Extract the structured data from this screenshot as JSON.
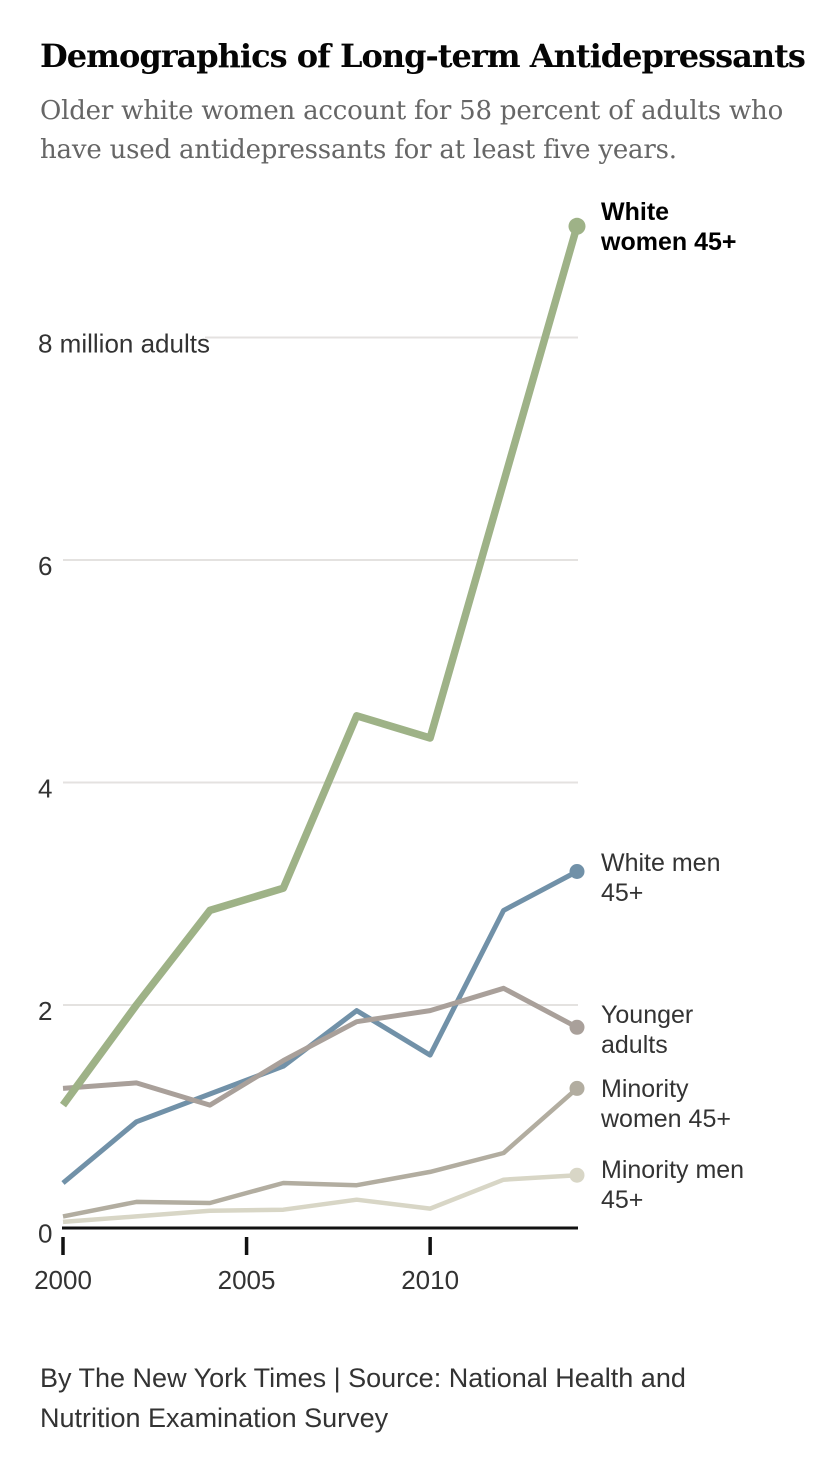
{
  "chart_data": {
    "type": "line",
    "title": "Demographics of Long-term Antidepressants",
    "subtitle": "Older white women account for 58 percent of adults who have used antidepressants for at least five years.",
    "unit": "million adults",
    "x": [
      2000,
      2002,
      2004,
      2006,
      2008,
      2010,
      2012,
      2014
    ],
    "x_ticks": [
      2000,
      2005,
      2010
    ],
    "y_ticks": [
      {
        "value": 0,
        "label": "0"
      },
      {
        "value": 2,
        "label": "2"
      },
      {
        "value": 4,
        "label": "4"
      },
      {
        "value": 6,
        "label": "6"
      },
      {
        "value": 8,
        "label": "8 million adults"
      }
    ],
    "ylim": [
      0,
      9.4
    ],
    "grid": true,
    "grid_color": "#e4e2e0",
    "axis_color": "#111111",
    "tick_label_color": "#333333",
    "legend_position": "right-of-line-ends",
    "series": [
      {
        "id": "white-women-45",
        "name": "White women 45+",
        "label_lines": [
          "White",
          "women 45+"
        ],
        "color": "#9eb287",
        "line_width": 7.5,
        "bold_label": true,
        "values": [
          1.1,
          2.0,
          2.85,
          3.05,
          4.6,
          4.4,
          6.7,
          9.0
        ]
      },
      {
        "id": "white-men-45",
        "name": "White men 45+",
        "label_lines": [
          "White men",
          "45+"
        ],
        "color": "#7191a8",
        "line_width": 5,
        "bold_label": false,
        "values": [
          0.4,
          0.95,
          1.2,
          1.45,
          1.95,
          1.55,
          2.85,
          3.2
        ]
      },
      {
        "id": "younger-adults",
        "name": "Younger adults",
        "label_lines": [
          "Younger",
          "adults"
        ],
        "color": "#a9a09a",
        "line_width": 5,
        "bold_label": false,
        "values": [
          1.25,
          1.3,
          1.1,
          1.5,
          1.85,
          1.95,
          2.15,
          1.8
        ]
      },
      {
        "id": "minority-women-45",
        "name": "Minority women 45+",
        "label_lines": [
          "Minority",
          "women 45+"
        ],
        "color": "#b2ada0",
        "line_width": 4.5,
        "bold_label": false,
        "values": [
          0.1,
          0.23,
          0.22,
          0.4,
          0.38,
          0.5,
          0.67,
          1.25
        ]
      },
      {
        "id": "minority-men-45",
        "name": "Minority men 45+",
        "label_lines": [
          "Minority men",
          "45+"
        ],
        "color": "#d8d6c6",
        "line_width": 4.5,
        "bold_label": false,
        "values": [
          0.05,
          0.1,
          0.15,
          0.16,
          0.25,
          0.17,
          0.43,
          0.47
        ]
      }
    ]
  },
  "footer": {
    "credit": "By The New York Times | Source: National Health and Nutrition Examination Survey"
  }
}
